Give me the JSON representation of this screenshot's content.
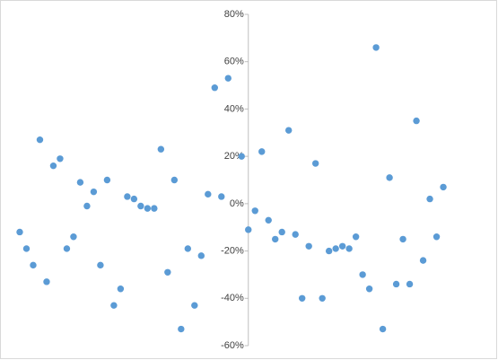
{
  "chart_data": {
    "type": "scatter",
    "color": "#5b9bd5",
    "x": [
      1,
      2,
      3,
      4,
      5,
      6,
      7,
      8,
      9,
      10,
      11,
      12,
      13,
      14,
      15,
      16,
      17,
      18,
      19,
      20,
      21,
      22,
      23,
      24,
      25,
      26,
      27,
      28,
      29,
      30,
      31,
      32,
      34,
      35,
      36,
      37,
      38,
      39,
      40,
      41,
      42,
      43,
      44,
      45,
      46,
      47,
      48,
      49,
      50,
      51,
      52,
      53,
      54,
      55,
      56,
      57,
      58,
      59,
      60,
      61,
      62,
      63,
      64
    ],
    "values": [
      -12,
      -19,
      -26,
      27,
      -33,
      16,
      19,
      -19,
      -14,
      9,
      -1,
      5,
      -26,
      10,
      -43,
      -36,
      3,
      2,
      -1,
      -2,
      -2,
      23,
      -29,
      10,
      -53,
      -19,
      -43,
      -22,
      4,
      49,
      3,
      53,
      20,
      -11,
      -3,
      22,
      -7,
      -15,
      -12,
      31,
      -13,
      -40,
      -18,
      17,
      -40,
      -20,
      -19,
      -18,
      -19,
      -14,
      -30,
      -36,
      66,
      -53,
      11,
      -34,
      -15,
      -34,
      35,
      -24,
      2,
      -14,
      7
    ],
    "xlim": [
      0,
      70
    ],
    "ylim": [
      -60,
      80
    ],
    "yticks": [
      {
        "value": -60,
        "label": "-60%"
      },
      {
        "value": -40,
        "label": "-40%"
      },
      {
        "value": -20,
        "label": "-20%"
      },
      {
        "value": 0,
        "label": "0%"
      },
      {
        "value": 20,
        "label": "20%"
      },
      {
        "value": 40,
        "label": "40%"
      },
      {
        "value": 60,
        "label": "60%"
      },
      {
        "value": 80,
        "label": "80%"
      }
    ]
  }
}
